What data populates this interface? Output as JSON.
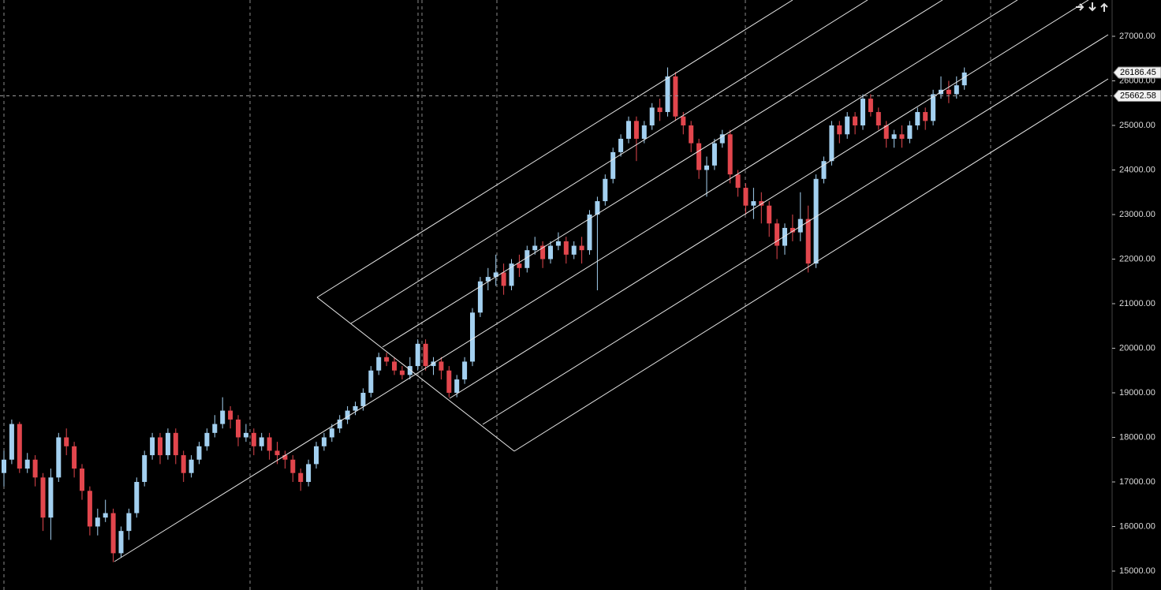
{
  "chart_data": {
    "type": "candlestick",
    "up_color": "#a3d0f0",
    "down_color": "#e2464d",
    "ylim": [
      14575,
      27814
    ],
    "yticks": [
      {
        "value": 15000,
        "label": "15000.00"
      },
      {
        "value": 16000,
        "label": "16000.00"
      },
      {
        "value": 17000,
        "label": "17000.00"
      },
      {
        "value": 18000,
        "label": "18000.00"
      },
      {
        "value": 19000,
        "label": "19000.00"
      },
      {
        "value": 20000,
        "label": "20000.00"
      },
      {
        "value": 21000,
        "label": "21000.00"
      },
      {
        "value": 22000,
        "label": "22000.00"
      },
      {
        "value": 23000,
        "label": "23000.00"
      },
      {
        "value": 24000,
        "label": "24000.00"
      },
      {
        "value": 25000,
        "label": "25000.00"
      },
      {
        "value": 26000,
        "label": "26000.00"
      },
      {
        "value": 27000,
        "label": "27000.00"
      }
    ],
    "last_price": 26186.45,
    "crosshair_price": 25662.58,
    "open": [
      17200,
      17500,
      18300,
      17300,
      17500,
      17100,
      16200,
      17100,
      18000,
      17800,
      17300,
      16800,
      16000,
      16200,
      16300,
      15400,
      15900,
      16300,
      17000,
      17600,
      18000,
      17600,
      18100,
      17600,
      17200,
      17500,
      17800,
      18100,
      18300,
      18600,
      18400,
      18000,
      18100,
      17800,
      18000,
      17700,
      17600,
      17500,
      17200,
      17000,
      17400,
      17800,
      18000,
      18200,
      18400,
      18600,
      18700,
      19000,
      19500,
      19800,
      19700,
      19500,
      19400,
      19600,
      20100,
      19600,
      19700,
      19500,
      19000,
      19300,
      19700,
      20800,
      21500,
      21600,
      21700,
      21400,
      21900,
      21800,
      22200,
      22300,
      22000,
      22300,
      22400,
      22100,
      22300,
      22200,
      23000,
      23300,
      23800,
      24400,
      24700,
      25100,
      24700,
      25000,
      25400,
      25300,
      26100,
      25200,
      25000,
      24600,
      24000,
      24100,
      24600,
      24800,
      23900,
      23600,
      23200,
      23300,
      23200,
      22800,
      22300,
      22700,
      22600,
      22900,
      21900,
      23800,
      24200,
      25000,
      24800,
      25200,
      25000,
      25600,
      25300,
      25000,
      24700,
      24800,
      24700,
      25000,
      25300,
      25100,
      25700,
      25800,
      25700,
      25900
    ],
    "high": [
      17700,
      18400,
      18350,
      17650,
      17600,
      17200,
      17300,
      18100,
      18200,
      17900,
      17400,
      16900,
      16400,
      16600,
      16400,
      16000,
      16400,
      17100,
      17700,
      18100,
      18100,
      18200,
      18200,
      17700,
      17600,
      17900,
      18200,
      18500,
      18900,
      18700,
      18500,
      18300,
      18200,
      18100,
      18100,
      17900,
      17700,
      17600,
      17300,
      17500,
      17900,
      18100,
      18300,
      18500,
      18700,
      18800,
      19100,
      19600,
      19900,
      19900,
      19800,
      19600,
      19800,
      20200,
      20200,
      19800,
      19800,
      19600,
      19400,
      19800,
      20900,
      21600,
      21800,
      22100,
      21900,
      22000,
      22100,
      22300,
      22500,
      22400,
      22400,
      22600,
      22500,
      22400,
      22500,
      23100,
      23400,
      23900,
      24500,
      24800,
      25200,
      25200,
      25100,
      25500,
      25600,
      26300,
      26200,
      25300,
      25100,
      24700,
      24300,
      24700,
      24900,
      24900,
      24000,
      23700,
      23600,
      23500,
      23300,
      22900,
      22800,
      23000,
      23500,
      23200,
      23900,
      24300,
      25100,
      25100,
      25300,
      25300,
      25700,
      25700,
      25400,
      25100,
      24900,
      25000,
      25100,
      25400,
      25400,
      25800,
      26100,
      26000,
      26100,
      26300
    ],
    "low": [
      16900,
      17400,
      17200,
      17200,
      16900,
      15900,
      15700,
      17000,
      17600,
      17100,
      16600,
      15800,
      15800,
      16100,
      15200,
      15300,
      15700,
      16200,
      16900,
      17500,
      17400,
      17500,
      17400,
      17000,
      17100,
      17400,
      17700,
      18000,
      18200,
      18200,
      17800,
      17900,
      17600,
      17700,
      17500,
      17400,
      17300,
      17000,
      16800,
      16900,
      17300,
      17700,
      17900,
      18100,
      18300,
      18500,
      18600,
      18900,
      19400,
      19600,
      19400,
      19300,
      19300,
      19500,
      19500,
      19400,
      19300,
      18900,
      18900,
      19200,
      19600,
      20700,
      21300,
      21400,
      21200,
      21300,
      21600,
      21700,
      22100,
      21800,
      21900,
      22200,
      21900,
      22000,
      21900,
      22100,
      21300,
      23200,
      23700,
      24300,
      24600,
      24200,
      24600,
      24900,
      25100,
      25200,
      25100,
      24800,
      24400,
      23800,
      23400,
      24000,
      24500,
      23700,
      23400,
      23000,
      22900,
      22800,
      22500,
      22000,
      22100,
      22400,
      22400,
      21700,
      21800,
      23700,
      24100,
      24600,
      24700,
      24800,
      24900,
      25200,
      24900,
      24500,
      24500,
      24500,
      24600,
      24900,
      24900,
      25000,
      25600,
      25500,
      25600,
      25800
    ],
    "close": [
      17500,
      18300,
      17300,
      17500,
      17100,
      16200,
      17100,
      18000,
      17800,
      17300,
      16800,
      16000,
      16200,
      16300,
      15400,
      15900,
      16300,
      17000,
      17600,
      18000,
      17600,
      18100,
      17600,
      17200,
      17500,
      17800,
      18100,
      18300,
      18600,
      18400,
      18000,
      18100,
      17800,
      18000,
      17700,
      17600,
      17500,
      17200,
      17000,
      17400,
      17800,
      18000,
      18200,
      18400,
      18600,
      18700,
      19000,
      19500,
      19800,
      19700,
      19500,
      19400,
      19600,
      20100,
      19600,
      19700,
      19500,
      19000,
      19300,
      19700,
      20800,
      21500,
      21600,
      21700,
      21400,
      21900,
      21800,
      22200,
      22300,
      22000,
      22300,
      22400,
      22100,
      22300,
      22200,
      23000,
      23300,
      23800,
      24400,
      24700,
      25100,
      24700,
      25000,
      25400,
      25300,
      26100,
      25200,
      25000,
      24600,
      24000,
      24100,
      24600,
      24800,
      23900,
      23600,
      23200,
      23300,
      23200,
      22800,
      22300,
      22700,
      22600,
      22900,
      21900,
      23800,
      24200,
      25000,
      24800,
      25200,
      25000,
      25600,
      25300,
      25000,
      24700,
      24800,
      24700,
      25000,
      25300,
      25100,
      25700,
      25800,
      25700,
      25900,
      26186.45
    ]
  }
}
